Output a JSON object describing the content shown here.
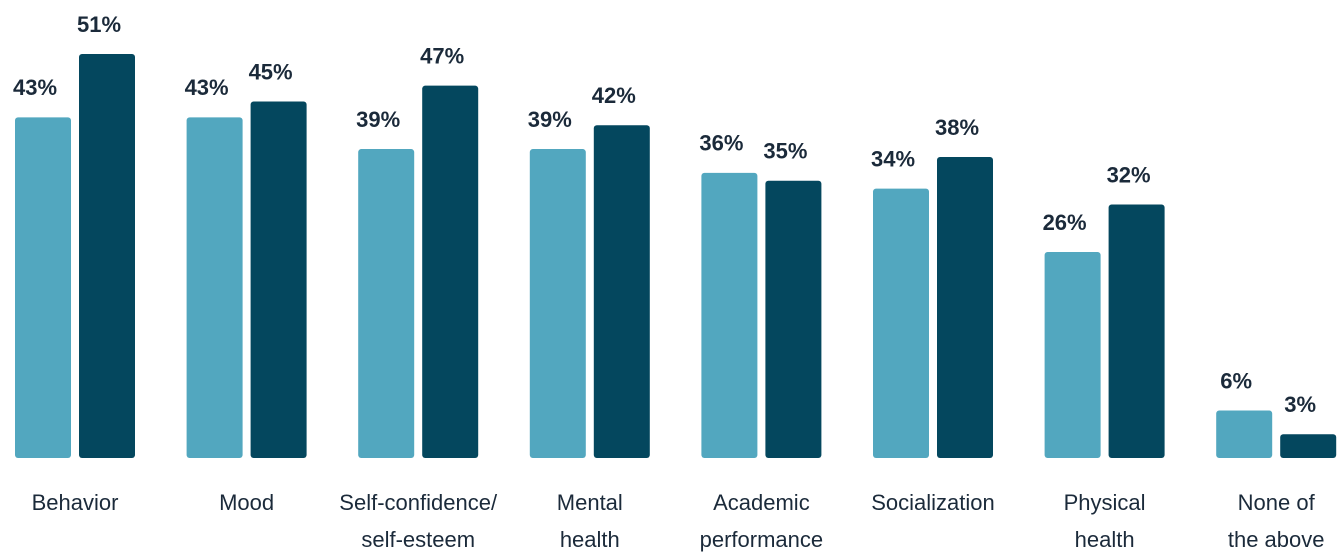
{
  "chart_data": {
    "type": "bar",
    "categories": [
      "Behavior",
      "Mood",
      "Self-confidence/\nself-esteem",
      "Mental\nhealth",
      "Academic\nperformance",
      "Socialization",
      "Physical\nhealth",
      "None of\nthe above"
    ],
    "series": [
      {
        "color": "#52a7bf",
        "values": [
          43,
          43,
          39,
          39,
          36,
          34,
          26,
          6
        ],
        "value_labels": [
          "43%",
          "43%",
          "39%",
          "39%",
          "36%",
          "34%",
          "26%",
          "6%"
        ]
      },
      {
        "color": "#04475e",
        "values": [
          51,
          45,
          47,
          42,
          35,
          38,
          32,
          3
        ],
        "value_labels": [
          "51%",
          "45%",
          "47%",
          "42%",
          "35%",
          "38%",
          "32%",
          "3%"
        ]
      }
    ]
  }
}
